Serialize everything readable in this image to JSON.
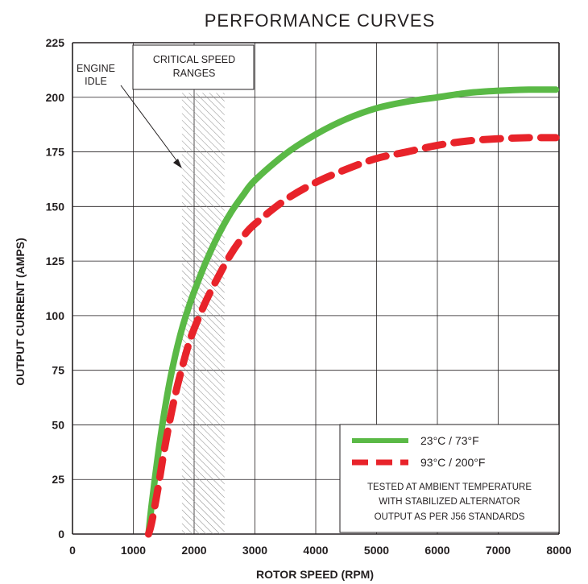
{
  "chart_data": {
    "type": "line",
    "title": "PERFORMANCE CURVES",
    "xlabel": "ROTOR SPEED (RPM)",
    "ylabel": "OUTPUT CURRENT (AMPS)",
    "xlim": [
      0,
      8000
    ],
    "ylim": [
      0,
      225
    ],
    "x_ticks": [
      "0",
      "1000",
      "2000",
      "3000",
      "4000",
      "5000",
      "6000",
      "7000",
      "8000"
    ],
    "y_ticks": [
      "0",
      "25",
      "50",
      "75",
      "100",
      "125",
      "150",
      "175",
      "200",
      "225"
    ],
    "grid": true,
    "colors": {
      "series_1": "#5ab946",
      "series_2": "#e8232a",
      "grid": "#231f20",
      "hatch": "#8a8a8a"
    },
    "series": [
      {
        "name": "23°C / 73°F",
        "style": "solid",
        "x": [
          1250,
          1300,
          1400,
          1500,
          1600,
          1700,
          1800,
          1900,
          2000,
          2200,
          2400,
          2600,
          2800,
          3000,
          3500,
          4000,
          4500,
          5000,
          5500,
          6000,
          6500,
          7000,
          7500,
          7950
        ],
        "y": [
          0,
          13,
          35,
          54,
          70,
          83,
          94,
          103,
          111,
          125,
          137,
          147,
          155,
          162,
          174,
          183,
          190,
          195,
          198,
          200,
          202,
          203,
          203.5,
          203.5
        ]
      },
      {
        "name": "93°C / 200°F",
        "style": "dashed",
        "x": [
          1250,
          1300,
          1400,
          1500,
          1600,
          1700,
          1800,
          1900,
          2000,
          2200,
          2400,
          2600,
          2800,
          3000,
          3500,
          4000,
          4500,
          5000,
          5500,
          6000,
          6500,
          7000,
          7500,
          7950
        ],
        "y": [
          0,
          5,
          20,
          37,
          52,
          65,
          76,
          86,
          94,
          107,
          118,
          128,
          136,
          142,
          153,
          161,
          167,
          172,
          175,
          178,
          180,
          181,
          181.5,
          181.5
        ]
      }
    ],
    "critical_speed_range": {
      "x_start": 1800,
      "x_end": 2500
    },
    "annotations": {
      "engine_idle": [
        "ENGINE",
        "IDLE"
      ],
      "critical_speed": [
        "CRITICAL SPEED",
        "RANGES"
      ]
    },
    "legend": {
      "placement": "bottom-right",
      "note": [
        "TESTED AT AMBIENT TEMPERATURE",
        "WITH  STABILIZED ALTERNATOR",
        "OUTPUT AS PER J56 STANDARDS"
      ]
    }
  }
}
